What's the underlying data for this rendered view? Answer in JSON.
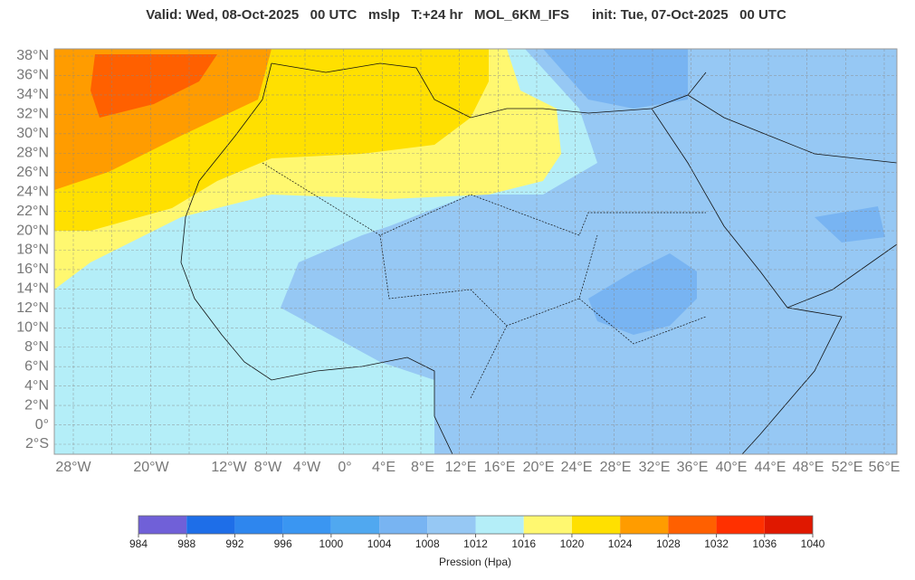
{
  "header": {
    "title": "Valid: Wed, 08-Oct-2025   00 UTC   mslp   T:+24 hr   MOL_6KM_IFS      init: Tue, 07-Oct-2025   00 UTC"
  },
  "map": {
    "lat_labels": [
      "38°N",
      "36°N",
      "34°N",
      "32°N",
      "30°N",
      "28°N",
      "26°N",
      "24°N",
      "22°N",
      "20°N",
      "18°N",
      "16°N",
      "14°N",
      "12°N",
      "10°N",
      "8°N",
      "6°N",
      "4°N",
      "2°N",
      "0°",
      "2°S"
    ],
    "lon_labels": [
      "28°W",
      "20°W",
      "12°W",
      "8°W",
      "4°W",
      "0°",
      "4°E",
      "8°E",
      "12°E",
      "16°E",
      "20°E",
      "24°E",
      "28°E",
      "32°E",
      "36°E",
      "40°E",
      "44°E",
      "48°E",
      "52°E",
      "56°E"
    ]
  },
  "colorbar": {
    "ticks": [
      984,
      988,
      992,
      996,
      1000,
      1004,
      1008,
      1012,
      1016,
      1020,
      1024,
      1028,
      1032,
      1036,
      1040
    ],
    "colors": [
      "#7060d8",
      "#1e6ee8",
      "#2e86ee",
      "#3a96f2",
      "#50a8f0",
      "#78b4f2",
      "#96c8f4",
      "#b4eef8",
      "#fff870",
      "#ffe000",
      "#ff9c00",
      "#ff6000",
      "#ff3000",
      "#e01800"
    ],
    "label": "Pression (Hpa)"
  }
}
